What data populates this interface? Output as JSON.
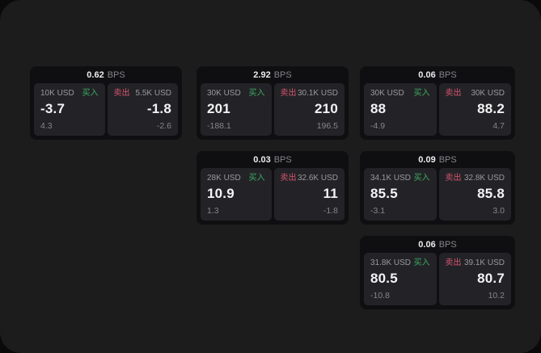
{
  "labels": {
    "buy": "买入",
    "sell": "卖出",
    "bps_unit": "BPS"
  },
  "colors": {
    "buy_green": "#3cab60",
    "sell_red": "#d6556e",
    "board_bg": "#1c1c1d",
    "card_bg": "#0f0f11",
    "panel_bg": "#232327",
    "primary_text": "#f3f3f4",
    "muted_text": "#85858a"
  },
  "cards": [
    {
      "bps": "0.62",
      "buy": {
        "amount": "10K USD",
        "price": "-3.7",
        "change": "4.3"
      },
      "sell": {
        "amount": "5.5K USD",
        "price": "-1.8",
        "change": "-2.6"
      }
    },
    {
      "bps": "2.92",
      "buy": {
        "amount": "30K USD",
        "price": "201",
        "change": "-188.1"
      },
      "sell": {
        "amount": "30.1K USD",
        "price": "210",
        "change": "196.5"
      }
    },
    {
      "bps": "0.06",
      "buy": {
        "amount": "30K USD",
        "price": "88",
        "change": "-4.9"
      },
      "sell": {
        "amount": "30K USD",
        "price": "88.2",
        "change": "4.7"
      }
    },
    {
      "bps": "0.03",
      "buy": {
        "amount": "28K USD",
        "price": "10.9",
        "change": "1.3"
      },
      "sell": {
        "amount": "32.6K USD",
        "price": "11",
        "change": "-1.8"
      }
    },
    {
      "bps": "0.09",
      "buy": {
        "amount": "34.1K USD",
        "price": "85.5",
        "change": "-3.1"
      },
      "sell": {
        "amount": "32.8K USD",
        "price": "85.8",
        "change": "3.0"
      }
    },
    {
      "bps": "0.06",
      "buy": {
        "amount": "31.8K USD",
        "price": "80.5",
        "change": "-10.8"
      },
      "sell": {
        "amount": "39.1K USD",
        "price": "80.7",
        "change": "10.2"
      }
    }
  ]
}
